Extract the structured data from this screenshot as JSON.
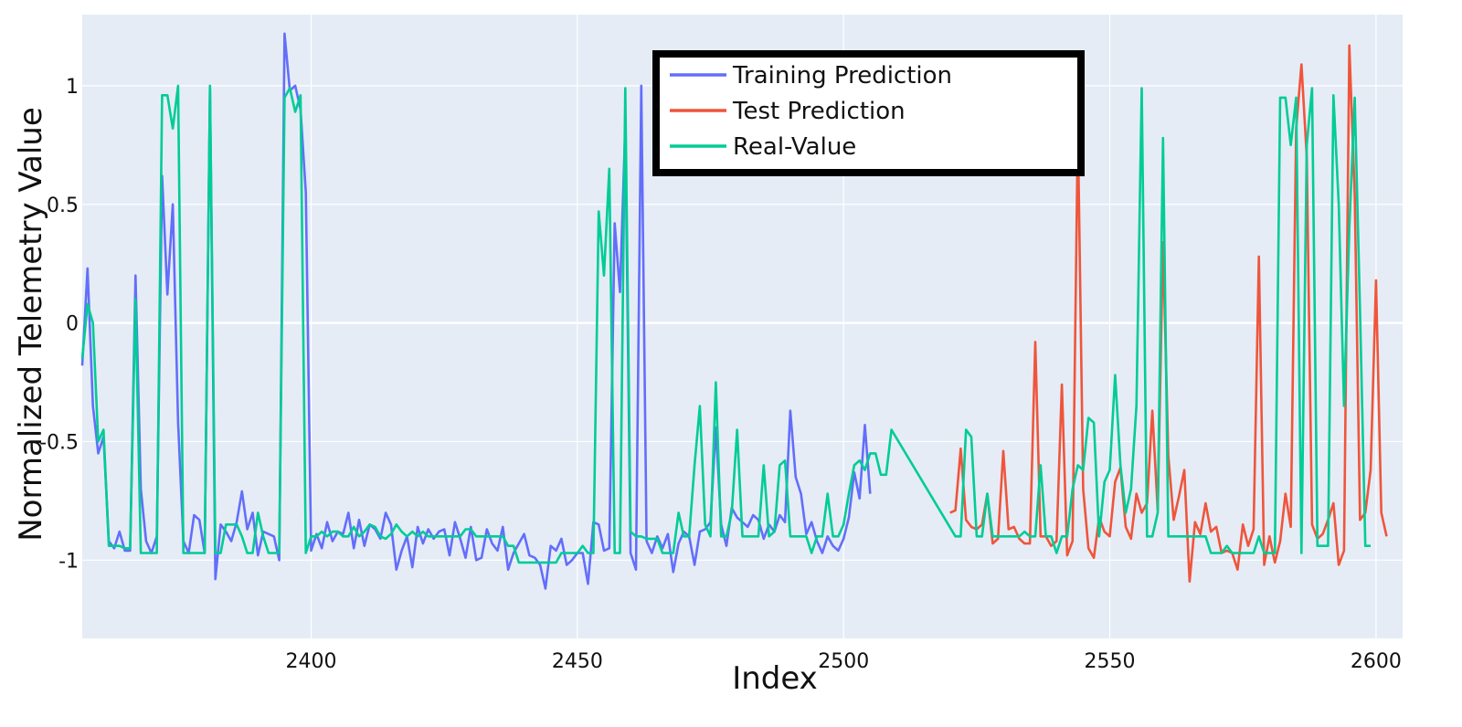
{
  "chart_data": {
    "type": "line",
    "title": "",
    "xlabel": "Index",
    "ylabel": "Normalized Telemetry Value",
    "xlim": [
      2357,
      2605
    ],
    "ylim": [
      -1.33,
      1.3
    ],
    "x_ticks": [
      2400,
      2450,
      2500,
      2550,
      2600
    ],
    "x_tick_labels": [
      "2400",
      "2450",
      "2500",
      "2550",
      "2600"
    ],
    "y_ticks": [
      1,
      0.5,
      0,
      -0.5,
      -1
    ],
    "y_tick_labels": [
      "1",
      "0.5",
      "0",
      "-0.5",
      "-1"
    ],
    "grid": true,
    "legend_position": "top-center",
    "plot_background": "#e5ecf6",
    "series": [
      {
        "name": "Training Prediction",
        "color": "#636efa",
        "x_start": 2357,
        "values": [
          -0.18,
          0.23,
          -0.35,
          -0.55,
          -0.48,
          -0.92,
          -0.95,
          -0.88,
          -0.96,
          -0.96,
          0.2,
          -0.7,
          -0.92,
          -0.97,
          -0.9,
          0.62,
          0.12,
          0.5,
          -0.42,
          -0.92,
          -0.97,
          -0.81,
          -0.83,
          -0.97,
          0.99,
          -1.08,
          -0.85,
          -0.88,
          -0.92,
          -0.84,
          -0.71,
          -0.87,
          -0.8,
          -0.98,
          -0.88,
          -0.89,
          -0.9,
          -1.0,
          1.22,
          0.98,
          1.0,
          0.9,
          0.55,
          -0.96,
          -0.89,
          -0.95,
          -0.84,
          -0.92,
          -0.88,
          -0.89,
          -0.8,
          -0.95,
          -0.83,
          -0.94,
          -0.85,
          -0.87,
          -0.91,
          -0.8,
          -0.85,
          -1.04,
          -0.96,
          -0.9,
          -1.03,
          -0.86,
          -0.93,
          -0.87,
          -0.91,
          -0.88,
          -0.87,
          -0.98,
          -0.84,
          -0.91,
          -0.99,
          -0.86,
          -1.0,
          -0.99,
          -0.87,
          -0.93,
          -0.96,
          -0.86,
          -1.04,
          -0.97,
          -0.93,
          -0.89,
          -0.98,
          -0.99,
          -1.02,
          -1.12,
          -0.94,
          -0.96,
          -0.91,
          -1.02,
          -1.0,
          -0.97,
          -0.97,
          -1.1,
          -0.84,
          -0.85,
          -0.96,
          -0.95,
          0.42,
          0.13,
          0.83,
          -0.97,
          -1.04,
          1.0,
          -0.92,
          -0.97,
          -0.9,
          -0.95,
          -0.89,
          -1.05,
          -0.93,
          -0.88,
          -0.9,
          -1.02,
          -0.88,
          -0.87,
          -0.84,
          -0.44,
          -0.85,
          -0.94,
          -0.78,
          -0.82,
          -0.84,
          -0.86,
          -0.81,
          -0.83,
          -0.91,
          -0.85,
          -0.88,
          -0.81,
          -0.84,
          -0.37,
          -0.65,
          -0.72,
          -0.89,
          -0.84,
          -0.92,
          -0.97,
          -0.9,
          -0.94,
          -0.96,
          -0.91,
          -0.82,
          -0.63,
          -0.74,
          -0.43,
          -0.72
        ]
      },
      {
        "name": "Test Prediction",
        "color": "#ef553b",
        "x_start": 2520,
        "values": [
          -0.8,
          -0.79,
          -0.53,
          -0.83,
          -0.86,
          -0.87,
          -0.85,
          -0.72,
          -0.93,
          -0.91,
          -0.54,
          -0.87,
          -0.86,
          -0.91,
          -0.93,
          -0.93,
          -0.08,
          -0.9,
          -0.9,
          -0.94,
          -0.92,
          -0.26,
          -0.98,
          -0.92,
          0.83,
          -0.7,
          -0.95,
          -0.99,
          -0.82,
          -0.88,
          -0.9,
          -0.67,
          -0.61,
          -0.86,
          -0.91,
          -0.72,
          -0.8,
          -0.76,
          -0.37,
          -0.79,
          0.34,
          -0.56,
          -0.83,
          -0.73,
          -0.62,
          -1.09,
          -0.84,
          -0.89,
          -0.76,
          -0.88,
          -0.86,
          -0.97,
          -0.96,
          -0.97,
          -1.04,
          -0.85,
          -0.94,
          -0.87,
          0.28,
          -1.02,
          -0.9,
          -1.01,
          -0.92,
          -0.72,
          -0.86,
          0.82,
          1.09,
          0.7,
          -0.85,
          -0.91,
          -0.89,
          -0.83,
          -0.76,
          -1.02,
          -0.96,
          1.17,
          0.54,
          -0.83,
          -0.8,
          -0.62,
          0.18,
          -0.8,
          -0.9
        ]
      },
      {
        "name": "Real-Value",
        "color": "#00cc96",
        "x_start": 2357,
        "values": [
          -0.15,
          0.08,
          0.0,
          -0.5,
          -0.45,
          -0.94,
          -0.94,
          -0.94,
          -0.95,
          -0.95,
          0.1,
          -0.97,
          -0.97,
          -0.97,
          -0.97,
          0.96,
          0.96,
          0.82,
          1.0,
          -0.97,
          -0.97,
          -0.97,
          -0.97,
          -0.97,
          1.0,
          -0.97,
          -0.97,
          -0.85,
          -0.85,
          -0.85,
          -0.9,
          -0.97,
          -0.97,
          -0.8,
          -0.9,
          -0.97,
          -0.97,
          -0.97,
          0.95,
          0.99,
          0.89,
          0.96,
          -0.97,
          -0.9,
          -0.9,
          -0.88,
          -0.9,
          -0.88,
          -0.88,
          -0.9,
          -0.9,
          -0.86,
          -0.9,
          -0.88,
          -0.85,
          -0.86,
          -0.9,
          -0.91,
          -0.89,
          -0.85,
          -0.88,
          -0.9,
          -0.88,
          -0.9,
          -0.88,
          -0.9,
          -0.9,
          -0.9,
          -0.9,
          -0.9,
          -0.9,
          -0.9,
          -0.87,
          -0.87,
          -0.9,
          -0.9,
          -0.9,
          -0.9,
          -0.9,
          -0.9,
          -0.94,
          -0.94,
          -1.01,
          -1.01,
          -1.01,
          -1.01,
          -1.01,
          -1.01,
          -1.01,
          -1.01,
          -0.97,
          -0.97,
          -0.97,
          -0.97,
          -0.94,
          -0.97,
          -0.97,
          0.47,
          0.2,
          0.65,
          -0.97,
          -0.97,
          0.99,
          -0.88,
          -0.9,
          -0.9,
          -0.91,
          -0.91,
          -0.91,
          -0.97,
          -0.97,
          -0.97,
          -0.8,
          -0.9,
          -0.9,
          -0.6,
          -0.35,
          -0.85,
          -0.9,
          -0.25,
          -0.9,
          -0.9,
          -0.8,
          -0.45,
          -0.9,
          -0.9,
          -0.9,
          -0.9,
          -0.6,
          -0.9,
          -0.88,
          -0.6,
          -0.58,
          -0.9,
          -0.9,
          -0.9,
          -0.9,
          -0.97,
          -0.9,
          -0.9,
          -0.72,
          -0.9,
          -0.9,
          -0.85,
          -0.72,
          -0.6,
          -0.58,
          -0.62,
          -0.55,
          -0.55,
          -0.64,
          -0.64,
          -0.45,
          -0.9,
          -0.9,
          -0.45,
          -0.48,
          -0.9,
          -0.9,
          -0.72,
          -0.9,
          -0.9,
          -0.9,
          -0.9,
          -0.9,
          -0.9,
          -0.88,
          -0.9,
          -0.9,
          -0.6,
          -0.9,
          -0.9,
          -0.97,
          -0.9,
          -0.9,
          -0.7,
          -0.6,
          -0.62,
          -0.4,
          -0.42,
          -0.9,
          -0.67,
          -0.62,
          -0.22,
          -0.6,
          -0.8,
          -0.7,
          -0.35,
          0.99,
          -0.9,
          -0.9,
          -0.8,
          0.78,
          -0.9,
          -0.9,
          -0.9,
          -0.9,
          -0.9,
          -0.9,
          -0.9,
          -0.9,
          -0.97,
          -0.97,
          -0.97,
          -0.94,
          -0.97,
          -0.97,
          -0.97,
          -0.97,
          -0.97,
          -0.9,
          -0.97,
          -0.97,
          -0.97,
          0.95,
          0.95,
          0.75,
          0.95,
          -0.97,
          0.75,
          0.99,
          -0.94,
          -0.94,
          -0.94,
          0.96,
          0.5,
          -0.35,
          0.4,
          0.95,
          0.05,
          -0.94,
          -0.94
        ],
        "x_skip_after": 2509,
        "x_resume": 2521
      }
    ]
  }
}
